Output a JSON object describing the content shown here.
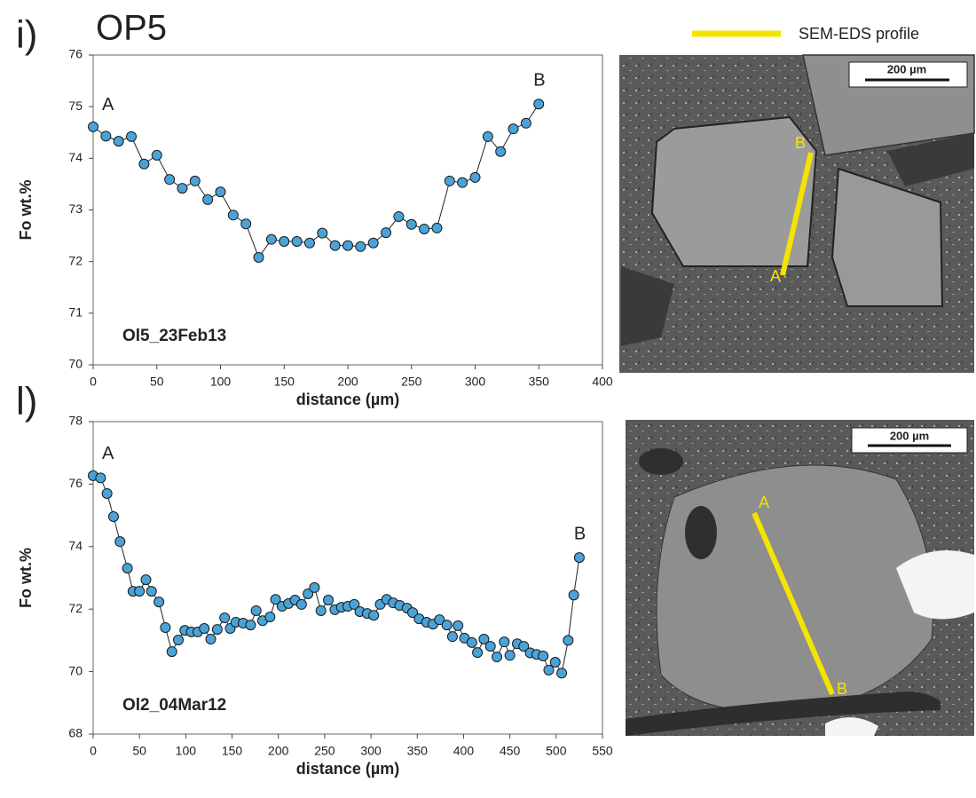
{
  "title": "OP5",
  "legend": {
    "label": "SEM-EDS profile",
    "color": "#f5e400"
  },
  "chart_data": [
    {
      "type": "line",
      "panel": "i)",
      "ylabel": "Fo wt.%",
      "xlabel": "distance (µm)",
      "annotation": "Ol5_23Feb13",
      "start_label": "A",
      "end_label": "B",
      "color": "#4aa3d8",
      "x": [
        0,
        10,
        20,
        30,
        40,
        50,
        60,
        70,
        80,
        90,
        100,
        110,
        120,
        130,
        140,
        150,
        160,
        170,
        180,
        190,
        200,
        210,
        220,
        230,
        240,
        250,
        260,
        270,
        280,
        290,
        300,
        310,
        320,
        330,
        340,
        350
      ],
      "values": [
        74.61,
        74.43,
        74.33,
        74.42,
        73.89,
        74.06,
        73.59,
        73.42,
        73.56,
        73.2,
        73.35,
        72.9,
        72.73,
        72.08,
        72.43,
        72.39,
        72.39,
        72.36,
        72.55,
        72.31,
        72.31,
        72.29,
        72.36,
        72.56,
        72.87,
        72.72,
        72.63,
        72.65,
        73.56,
        73.53,
        73.63,
        74.42,
        74.13,
        74.57,
        74.68,
        75.05
      ],
      "xlim": [
        0,
        400
      ],
      "xticks": [
        0,
        50,
        100,
        150,
        200,
        250,
        300,
        350,
        400
      ],
      "ylim": [
        70,
        76
      ],
      "yticks": [
        70,
        71,
        72,
        73,
        74,
        75,
        76
      ]
    },
    {
      "type": "line",
      "panel": "l)",
      "ylabel": "Fo wt.%",
      "xlabel": "distance (µm)",
      "annotation": "Ol2_04Mar12",
      "start_label": "A",
      "end_label": "B",
      "color": "#4aa3d8",
      "x": [
        0,
        8,
        15,
        22,
        29,
        37,
        43,
        50,
        57,
        63,
        71,
        78,
        85,
        92,
        99,
        106,
        113,
        120,
        127,
        134,
        142,
        148,
        154,
        162,
        170,
        176,
        183,
        191,
        197,
        204,
        211,
        218,
        225,
        232,
        239,
        246,
        254,
        261,
        268,
        275,
        282,
        288,
        296,
        303,
        310,
        317,
        324,
        331,
        339,
        345,
        352,
        360,
        367,
        374,
        382,
        388,
        394,
        401,
        409,
        415,
        422,
        429,
        436,
        444,
        450,
        458,
        465,
        472,
        479,
        486,
        492,
        499,
        506,
        513,
        519,
        525
      ],
      "values": [
        76.27,
        76.2,
        75.7,
        74.96,
        74.16,
        73.31,
        72.57,
        72.57,
        72.94,
        72.57,
        72.23,
        71.41,
        70.64,
        71.01,
        71.32,
        71.27,
        71.27,
        71.38,
        71.04,
        71.35,
        71.72,
        71.38,
        71.58,
        71.55,
        71.49,
        71.95,
        71.63,
        71.75,
        72.31,
        72.09,
        72.18,
        72.29,
        72.15,
        72.49,
        72.69,
        71.95,
        72.29,
        71.98,
        72.06,
        72.09,
        72.15,
        71.92,
        71.86,
        71.8,
        72.15,
        72.31,
        72.2,
        72.12,
        72.03,
        71.89,
        71.69,
        71.58,
        71.52,
        71.66,
        71.49,
        71.12,
        71.47,
        71.07,
        70.93,
        70.61,
        71.04,
        70.81,
        70.47,
        70.95,
        70.52,
        70.89,
        70.81,
        70.6,
        70.55,
        70.5,
        70.05,
        70.3,
        69.95,
        71.0,
        72.45,
        73.65
      ],
      "xlim": [
        0,
        550
      ],
      "xticks": [
        0,
        50,
        100,
        150,
        200,
        250,
        300,
        350,
        400,
        450,
        500,
        550
      ],
      "ylim": [
        68,
        78
      ],
      "yticks": [
        68,
        70,
        72,
        74,
        76,
        78
      ]
    }
  ],
  "images": [
    {
      "scale": "200 µm",
      "start": "A",
      "end": "B"
    },
    {
      "scale": "200 µm",
      "start": "A",
      "end": "B"
    }
  ]
}
